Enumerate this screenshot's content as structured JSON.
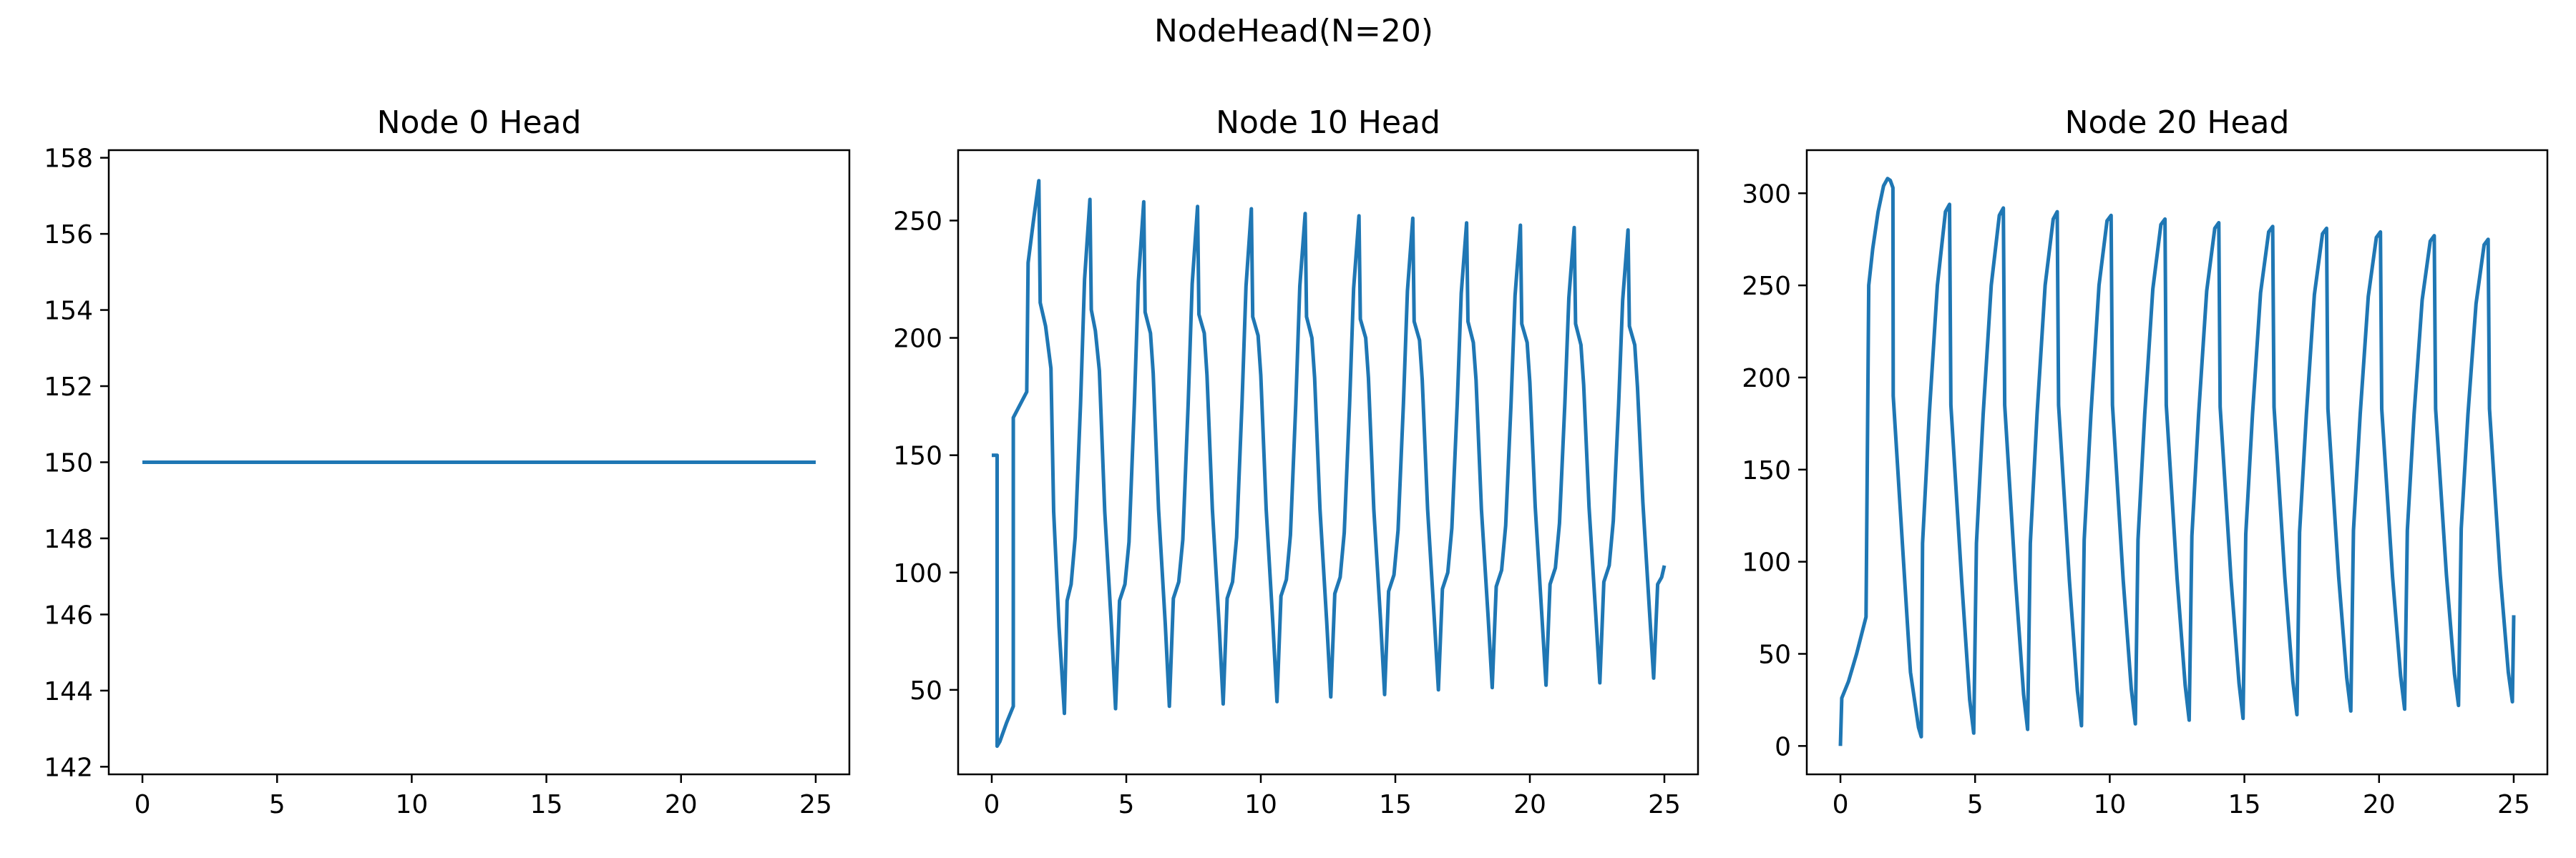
{
  "figure": {
    "suptitle": "NodeHead(N=20)"
  },
  "chart_data": [
    {
      "type": "line",
      "title": "Node 0 Head",
      "xlabel": "",
      "ylabel": "",
      "xlim": [
        -1.25,
        26.25
      ],
      "ylim": [
        141.8,
        158.2
      ],
      "xticks": [
        0,
        5,
        10,
        15,
        20,
        25
      ],
      "yticks": [
        142,
        144,
        146,
        148,
        150,
        152,
        154,
        156,
        158
      ],
      "grid": false,
      "color": "#1f77b4",
      "series": [
        {
          "x": [
            0,
            25
          ],
          "y": [
            150,
            150
          ]
        }
      ]
    },
    {
      "type": "line",
      "title": "Node 10 Head",
      "xlabel": "",
      "ylabel": "",
      "xlim": [
        -1.25,
        26.25
      ],
      "ylim": [
        14,
        280
      ],
      "xticks": [
        0,
        5,
        10,
        15,
        20,
        25
      ],
      "yticks": [
        50,
        100,
        150,
        200,
        250
      ],
      "grid": false,
      "color": "#1f77b4",
      "series": [
        {
          "x": [
            0,
            0.2,
            0.2,
            0.3,
            0.55,
            0.8,
            0.8,
            1.3,
            1.35,
            1.55,
            1.75,
            1.8,
            2.0,
            2.2,
            2.3,
            2.5,
            2.7,
            2.8,
            2.95,
            3.1,
            3.3,
            3.45,
            3.65,
            3.7,
            3.85,
            4.0,
            4.2,
            4.45,
            4.6,
            4.75,
            4.95,
            5.1,
            5.3,
            5.45,
            5.65,
            5.7,
            5.9,
            6.0,
            6.2,
            6.45,
            6.6,
            6.75,
            6.95,
            7.1,
            7.3,
            7.45,
            7.65,
            7.7,
            7.9,
            8.0,
            8.2,
            8.45,
            8.6,
            8.75,
            8.95,
            9.1,
            9.3,
            9.45,
            9.65,
            9.7,
            9.9,
            10.0,
            10.2,
            10.45,
            10.6,
            10.75,
            10.95,
            11.1,
            11.3,
            11.45,
            11.65,
            11.7,
            11.9,
            12.0,
            12.2,
            12.45,
            12.6,
            12.75,
            12.95,
            13.1,
            13.3,
            13.45,
            13.65,
            13.7,
            13.9,
            14.0,
            14.2,
            14.45,
            14.6,
            14.75,
            14.95,
            15.1,
            15.3,
            15.45,
            15.65,
            15.7,
            15.9,
            16.0,
            16.2,
            16.45,
            16.6,
            16.75,
            16.95,
            17.1,
            17.3,
            17.45,
            17.65,
            17.7,
            17.9,
            18.0,
            18.2,
            18.45,
            18.6,
            18.75,
            18.95,
            19.1,
            19.3,
            19.45,
            19.65,
            19.7,
            19.9,
            20.0,
            20.2,
            20.45,
            20.6,
            20.75,
            20.95,
            21.1,
            21.3,
            21.45,
            21.65,
            21.7,
            21.9,
            22.0,
            22.2,
            22.45,
            22.6,
            22.75,
            22.95,
            23.1,
            23.3,
            23.45,
            23.65,
            23.7,
            23.9,
            24.0,
            24.2,
            24.45,
            24.6,
            24.75,
            24.9,
            25.0
          ],
          "y": [
            150,
            150,
            26,
            28,
            36,
            43,
            166,
            177,
            232,
            250,
            267,
            215,
            205,
            187,
            126,
            77,
            40,
            88,
            95,
            115,
            172,
            225,
            259,
            212,
            203,
            186,
            126,
            77,
            42,
            88,
            95,
            113,
            172,
            224,
            258,
            211,
            202,
            185,
            127,
            78,
            43,
            89,
            96,
            114,
            172,
            223,
            256,
            210,
            202,
            184,
            127,
            78,
            44,
            89,
            96,
            115,
            172,
            222,
            255,
            209,
            201,
            184,
            127,
            78,
            45,
            90,
            97,
            116,
            172,
            222,
            253,
            209,
            200,
            183,
            127,
            79,
            47,
            91,
            98,
            117,
            172,
            221,
            252,
            208,
            200,
            183,
            127,
            80,
            48,
            92,
            99,
            118,
            172,
            220,
            251,
            207,
            199,
            182,
            127,
            80,
            50,
            93,
            100,
            119,
            172,
            219,
            249,
            207,
            198,
            182,
            127,
            81,
            51,
            94,
            101,
            120,
            172,
            218,
            248,
            206,
            198,
            181,
            128,
            81,
            52,
            95,
            102,
            121,
            172,
            217,
            247,
            206,
            197,
            180,
            128,
            82,
            53,
            96,
            103,
            122,
            172,
            216,
            246,
            205,
            197,
            179,
            130,
            83,
            55,
            95,
            98,
            103
          ]
        }
      ]
    },
    {
      "type": "line",
      "title": "Node 20 Head",
      "xlabel": "",
      "ylabel": "",
      "xlim": [
        -1.25,
        26.25
      ],
      "ylim": [
        -15.4,
        323.4
      ],
      "xticks": [
        0,
        5,
        10,
        15,
        20,
        25
      ],
      "yticks": [
        0,
        50,
        100,
        150,
        200,
        250,
        300
      ],
      "grid": false,
      "color": "#1f77b4",
      "series": [
        {
          "x": [
            0,
            0.05,
            0.3,
            0.6,
            0.95,
            1.05,
            1.2,
            1.4,
            1.6,
            1.75,
            1.85,
            1.95,
            1.96,
            2.3,
            2.6,
            2.9,
            3.0,
            3.05,
            3.3,
            3.6,
            3.9,
            4.05,
            4.1,
            4.5,
            4.8,
            4.95,
            5.05,
            5.3,
            5.6,
            5.9,
            6.05,
            6.1,
            6.5,
            6.8,
            6.95,
            7.05,
            7.3,
            7.6,
            7.9,
            8.05,
            8.1,
            8.5,
            8.8,
            8.95,
            9.05,
            9.3,
            9.6,
            9.9,
            10.05,
            10.1,
            10.5,
            10.8,
            10.95,
            11.05,
            11.3,
            11.6,
            11.9,
            12.05,
            12.1,
            12.5,
            12.8,
            12.95,
            13.05,
            13.3,
            13.6,
            13.9,
            14.05,
            14.1,
            14.5,
            14.8,
            14.95,
            15.05,
            15.3,
            15.6,
            15.9,
            16.05,
            16.1,
            16.5,
            16.8,
            16.95,
            17.05,
            17.3,
            17.6,
            17.9,
            18.05,
            18.1,
            18.5,
            18.8,
            18.95,
            19.05,
            19.3,
            19.6,
            19.9,
            20.05,
            20.1,
            20.5,
            20.8,
            20.95,
            21.05,
            21.3,
            21.6,
            21.9,
            22.05,
            22.1,
            22.5,
            22.8,
            22.95,
            23.05,
            23.3,
            23.6,
            23.9,
            24.05,
            24.1,
            24.5,
            24.8,
            24.95,
            25.0
          ],
          "y": [
            0,
            26,
            35,
            50,
            70,
            250,
            270,
            290,
            304,
            308,
            307,
            303,
            190,
            110,
            40,
            10,
            5,
            110,
            180,
            250,
            290,
            294,
            185,
            90,
            25,
            7,
            110,
            180,
            250,
            288,
            292,
            185,
            90,
            28,
            9,
            110,
            180,
            250,
            286,
            290,
            185,
            90,
            30,
            11,
            112,
            180,
            250,
            285,
            288,
            185,
            90,
            31,
            12,
            112,
            180,
            248,
            283,
            286,
            185,
            91,
            33,
            14,
            114,
            180,
            247,
            281,
            284,
            184,
            91,
            34,
            15,
            115,
            180,
            246,
            279,
            282,
            184,
            92,
            35,
            17,
            116,
            180,
            245,
            278,
            281,
            183,
            92,
            37,
            19,
            117,
            180,
            244,
            276,
            279,
            183,
            92,
            38,
            20,
            117,
            180,
            242,
            274,
            277,
            183,
            93,
            39,
            22,
            118,
            180,
            240,
            272,
            275,
            183,
            93,
            40,
            24,
            71
          ]
        }
      ]
    }
  ]
}
